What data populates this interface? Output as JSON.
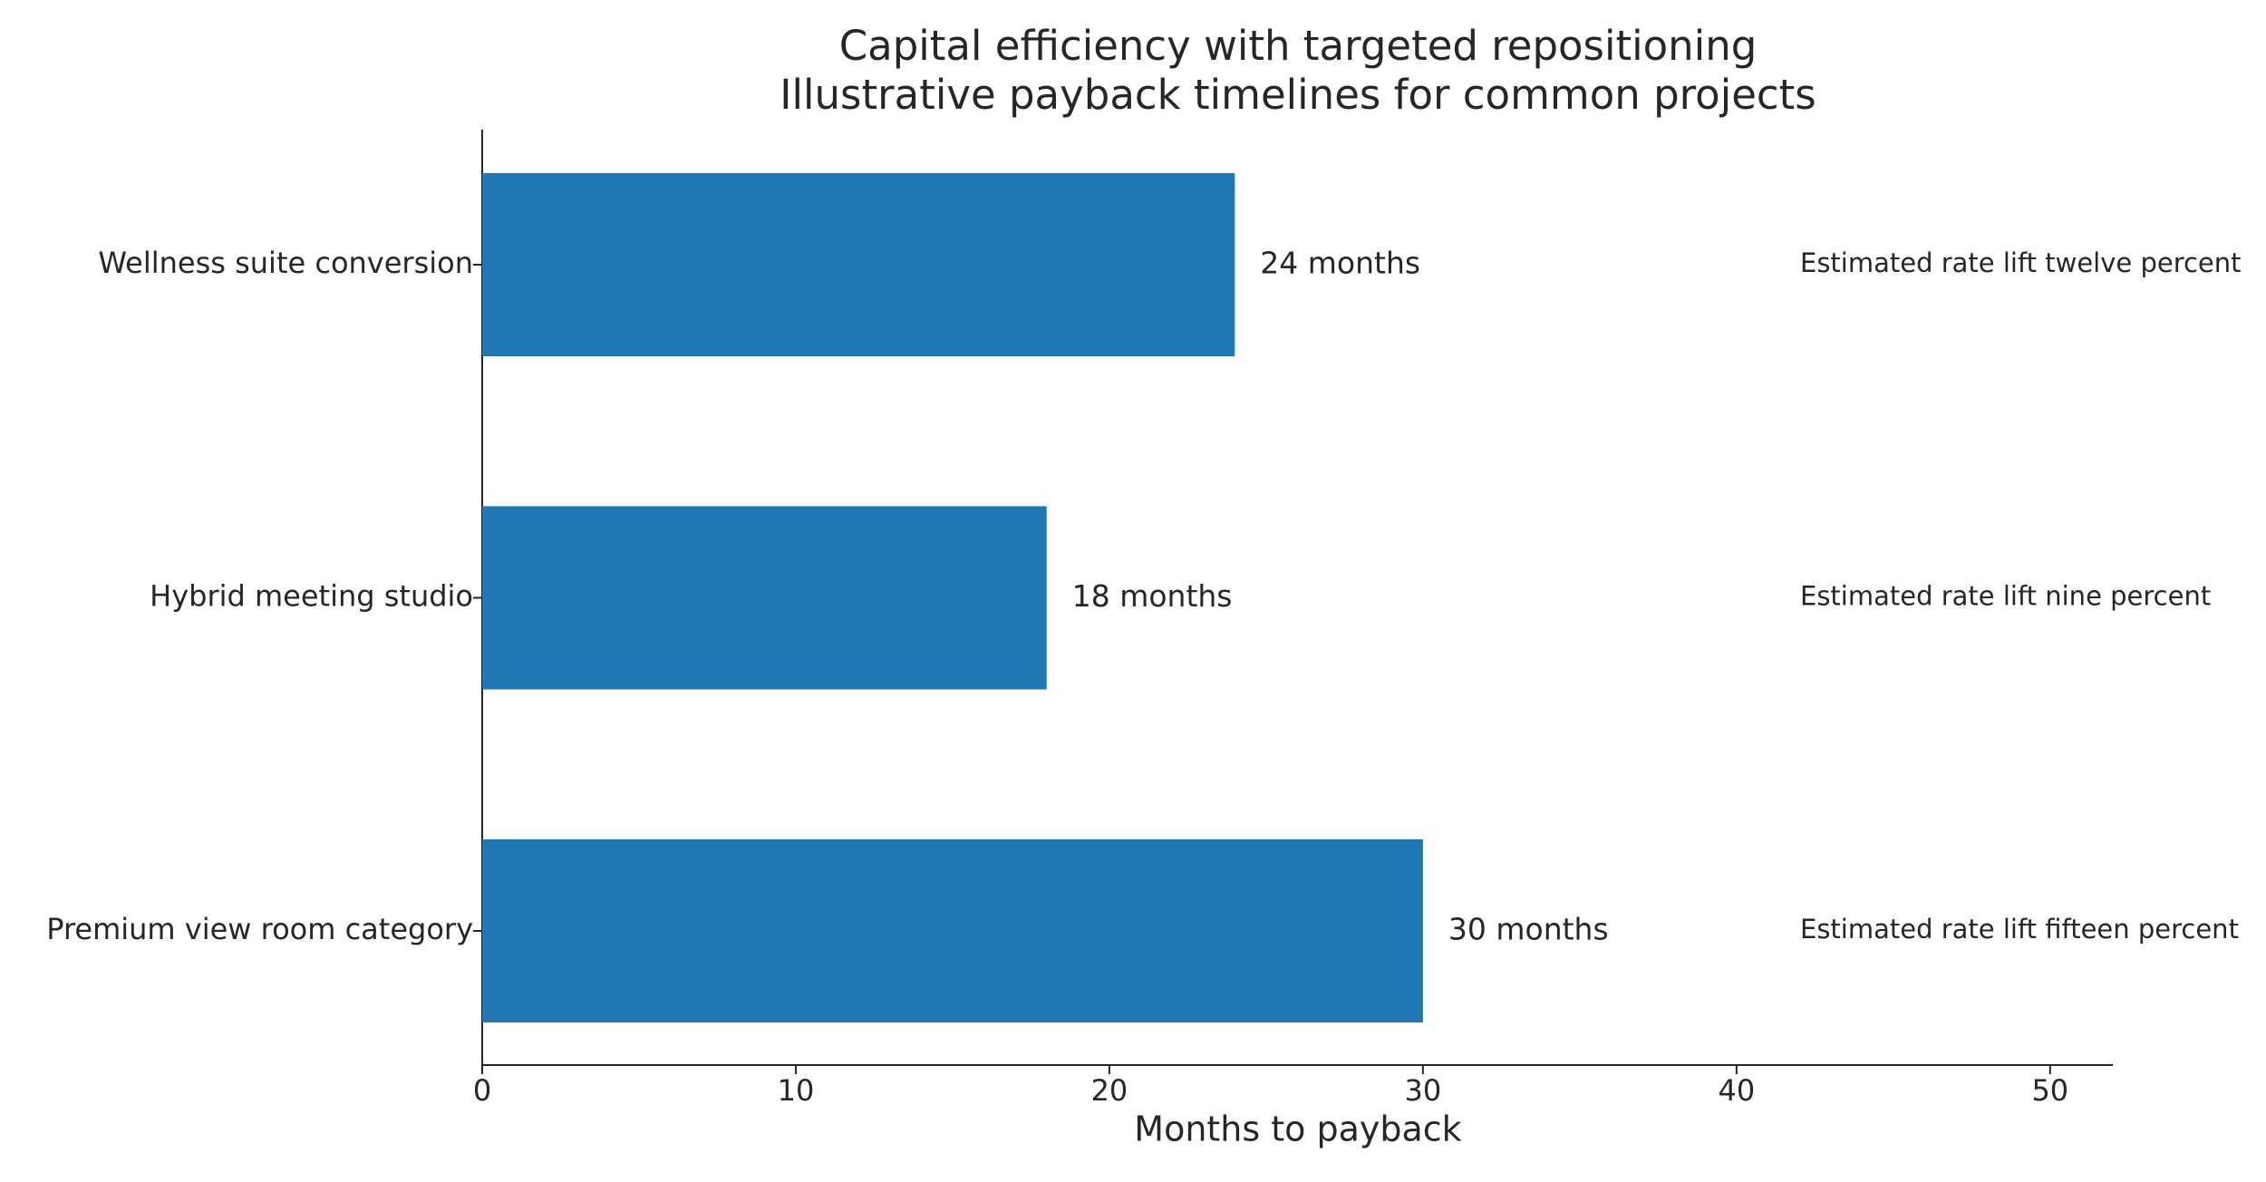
{
  "chart_data": {
    "type": "barh",
    "title": "Capital efficiency with targeted repositioning",
    "subtitle": "Illustrative payback timelines for common projects",
    "x_label": "Months to payback",
    "categories": [
      "Wellness suite conversion",
      "Hybrid meeting studio",
      "Premium view room category"
    ],
    "values": [
      24,
      18,
      30
    ],
    "value_labels": [
      "24 months",
      "18 months",
      "30 months"
    ],
    "annotations": [
      "Estimated rate lift twelve percent",
      "Estimated rate lift nine percent",
      "Estimated rate lift fifteen percent"
    ],
    "color": "#1f77b4",
    "xlim": [
      0,
      52
    ],
    "xticks": [
      0,
      10,
      20,
      30,
      40,
      50
    ],
    "grid": false
  }
}
